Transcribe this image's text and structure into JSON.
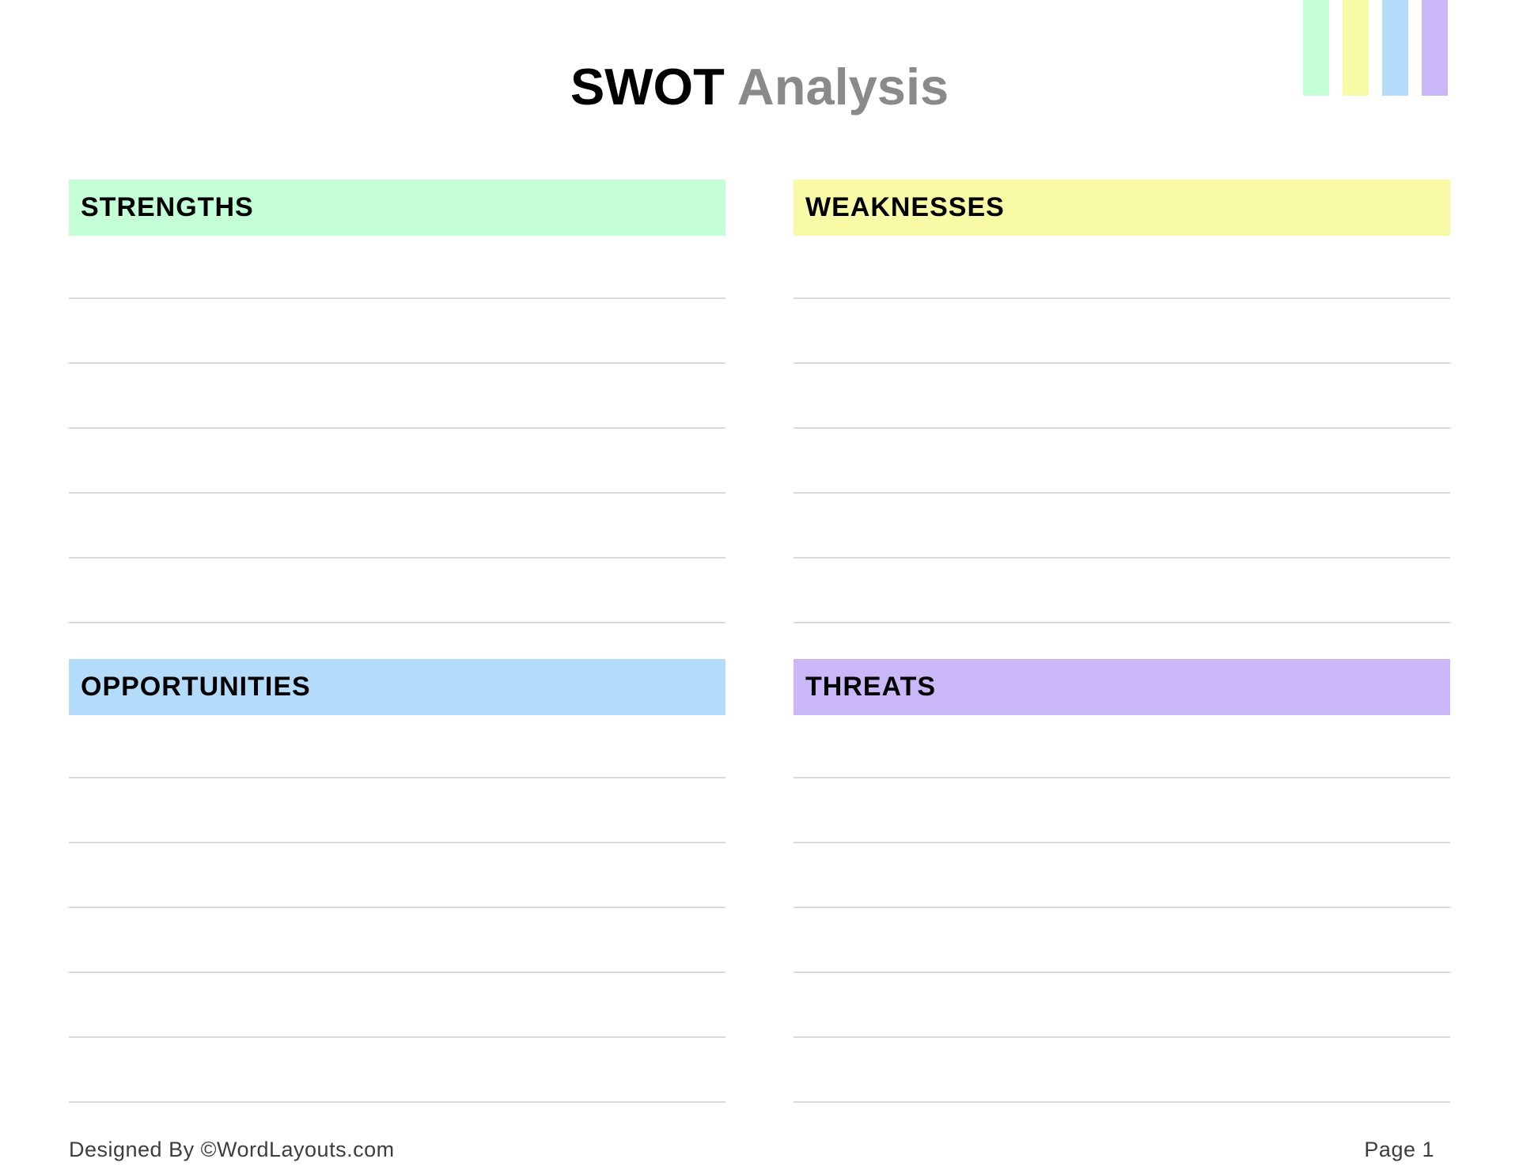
{
  "title": {
    "primary": "SWOT",
    "secondary": "Analysis"
  },
  "decoration": {
    "stripe_colors": [
      "#c3fed7",
      "#f9faa5",
      "#b5dbfa",
      "#c9b7f8"
    ]
  },
  "quadrants": [
    {
      "id": "strengths",
      "label": "STRENGTHS",
      "color": "#c3fed7",
      "lines": 6
    },
    {
      "id": "weaknesses",
      "label": "WEAKNESSES",
      "color": "#f9faa5",
      "lines": 6
    },
    {
      "id": "opportunities",
      "label": "OPPORTUNITIES",
      "color": "#b5dbfa",
      "lines": 6
    },
    {
      "id": "threats",
      "label": "THREATS",
      "color": "#c9b7f8",
      "lines": 6
    }
  ],
  "footer": {
    "left": "Designed By ©WordLayouts.com",
    "right": "Page 1"
  },
  "line_color": "#d9d9d9"
}
